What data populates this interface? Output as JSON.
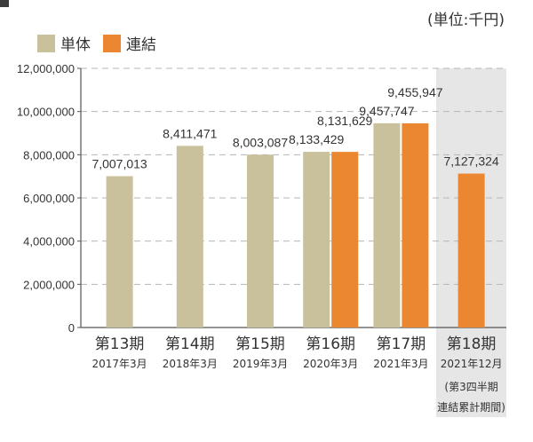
{
  "unit_note": "(単位:千円)",
  "legend": [
    {
      "label": "単体",
      "color": "#c8c19b"
    },
    {
      "label": "連結",
      "color": "#ea8730"
    }
  ],
  "chart_data": {
    "type": "bar",
    "title": "",
    "xlabel": "",
    "ylabel": "",
    "ylim": [
      0,
      12000000
    ],
    "yticks": [
      0,
      2000000,
      4000000,
      6000000,
      8000000,
      10000000,
      12000000
    ],
    "ytick_labels": [
      "0",
      "2,000,000",
      "4,000,000",
      "6,000,000",
      "8,000,000",
      "10,000,000",
      "12,000,000"
    ],
    "grid": "horizontal dashed",
    "categories": [
      {
        "period": "第13期",
        "date": "2017年3月",
        "note": []
      },
      {
        "period": "第14期",
        "date": "2018年3月",
        "note": []
      },
      {
        "period": "第15期",
        "date": "2019年3月",
        "note": []
      },
      {
        "period": "第16期",
        "date": "2020年3月",
        "note": []
      },
      {
        "period": "第17期",
        "date": "2021年3月",
        "note": []
      },
      {
        "period": "第18期",
        "date": "2021年12月",
        "note": [
          "(第3四半期",
          "連結累計期間)"
        ]
      }
    ],
    "highlight_category_index": 5,
    "series": [
      {
        "name": "単体",
        "color": "#c8c19b",
        "values": [
          7007013,
          8411471,
          8003087,
          8133429,
          9457747,
          null
        ],
        "labels": [
          "7,007,013",
          "8,411,471",
          "8,003,087",
          "8,133,429",
          "9,457,747",
          null
        ]
      },
      {
        "name": "連結",
        "color": "#ea8730",
        "values": [
          null,
          null,
          null,
          8131629,
          9455947,
          7127324
        ],
        "labels": [
          null,
          null,
          null,
          "8,131,629",
          "9,455,947",
          "7,127,324"
        ]
      }
    ]
  }
}
